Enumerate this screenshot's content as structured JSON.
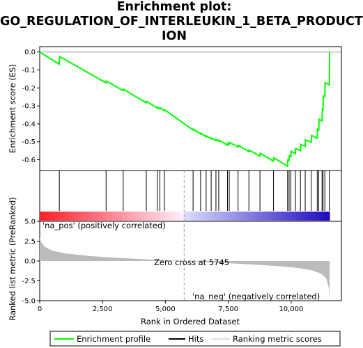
{
  "title_line1": "Enrichment plot:",
  "title_line2": "GO_REGULATION_OF_INTERLEUKIN_1_BETA_PRODUCT",
  "title_line3": "ION",
  "colors": {
    "es_line": "#00ff00",
    "hits": "#000000",
    "metric_fill": "#bbbbbb",
    "pos_label": "#cc0000",
    "neg_label": "#0000cc"
  },
  "chart_data": {
    "type": "line",
    "title": "Enrichment plot: GO_REGULATION_OF_INTERLEUKIN_1_BETA_PRODUCTION",
    "xlabel": "Rank in Ordered Dataset",
    "xlim": [
      0,
      12000
    ],
    "x_ticks": [
      0,
      2500,
      5000,
      7500,
      10000
    ],
    "x_tick_labels": [
      "0",
      "2,500",
      "5,000",
      "7,500",
      "10,000"
    ],
    "es_panel": {
      "ylabel": "Enrichment score (ES)",
      "ylim": [
        -0.66,
        0.03
      ],
      "y_ticks": [
        0.0,
        -0.1,
        -0.2,
        -0.3,
        -0.4,
        -0.5,
        -0.6
      ],
      "y_tick_labels": [
        "0.0",
        "-0.1",
        "-0.2",
        "-0.3",
        "-0.4",
        "-0.5",
        "-0.6"
      ],
      "series": [
        {
          "name": "Enrichment profile",
          "x": [
            0,
            780,
            790,
            2640,
            2650,
            3320,
            3330,
            4240,
            4250,
            4680,
            4690,
            4780,
            4790,
            4960,
            4970,
            6100,
            6110,
            6400,
            6410,
            6620,
            6630,
            6820,
            6830,
            7010,
            7020,
            7120,
            7130,
            7470,
            7480,
            7540,
            7550,
            7890,
            7900,
            8320,
            8330,
            8760,
            8770,
            9300,
            9310,
            9860,
            9870,
            9920,
            9930,
            9990,
            10000,
            10170,
            10180,
            10370,
            10380,
            10560,
            10570,
            10800,
            10810,
            11040,
            11050,
            11100,
            11110,
            11230,
            11240,
            11270,
            11280,
            11340,
            11350,
            11520,
            11530
          ],
          "y": [
            0.0,
            -0.068,
            -0.025,
            -0.172,
            -0.162,
            -0.215,
            -0.207,
            -0.283,
            -0.275,
            -0.313,
            -0.308,
            -0.316,
            -0.311,
            -0.327,
            -0.322,
            -0.434,
            -0.429,
            -0.457,
            -0.452,
            -0.472,
            -0.467,
            -0.484,
            -0.479,
            -0.493,
            -0.488,
            -0.496,
            -0.491,
            -0.519,
            -0.509,
            -0.513,
            -0.503,
            -0.529,
            -0.519,
            -0.555,
            -0.545,
            -0.581,
            -0.564,
            -0.608,
            -0.589,
            -0.636,
            -0.6,
            -0.603,
            -0.578,
            -0.583,
            -0.553,
            -0.566,
            -0.537,
            -0.549,
            -0.514,
            -0.525,
            -0.49,
            -0.502,
            -0.465,
            -0.48,
            -0.43,
            -0.434,
            -0.374,
            -0.385,
            -0.318,
            -0.32,
            -0.245,
            -0.249,
            -0.171,
            -0.183,
            0.0
          ]
        }
      ]
    },
    "hits": [
      780,
      2640,
      3320,
      4240,
      4680,
      4780,
      4960,
      6100,
      6400,
      6620,
      6820,
      7010,
      7120,
      7470,
      7540,
      7890,
      8320,
      8760,
      9300,
      9860,
      9920,
      9990,
      10170,
      10370,
      10560,
      10800,
      11040,
      11100,
      11230,
      11270,
      11340,
      11520
    ],
    "metric_panel": {
      "ylabel": "Ranked list metric (PreRanked)",
      "ylim": [
        -5,
        5
      ],
      "y_ticks": [
        5.0,
        2.5,
        0.0,
        -2.5,
        -5.0
      ],
      "y_tick_labels": [
        "5.0",
        "2.5",
        "0.0",
        "-2.5",
        "-5.0"
      ],
      "zero_cross_rank": 5745,
      "zero_cross_label": "Zero cross at 5745",
      "pos_label": "'na_pos' (positively correlated)",
      "neg_label": "'na_neg' (negatively correlated)",
      "profile_x": [
        0,
        50,
        200,
        500,
        1000,
        2000,
        3000,
        4000,
        5000,
        5745,
        6500,
        7500,
        8500,
        9500,
        10200,
        10800,
        11200,
        11400,
        11500,
        11530
      ],
      "profile_y": [
        3.0,
        2.4,
        1.8,
        1.3,
        0.95,
        0.62,
        0.42,
        0.25,
        0.1,
        0.0,
        -0.12,
        -0.28,
        -0.45,
        -0.65,
        -0.85,
        -1.15,
        -1.6,
        -2.2,
        -3.4,
        -4.7
      ]
    },
    "legend": [
      "Enrichment profile",
      "Hits",
      "Ranking metric scores"
    ]
  }
}
